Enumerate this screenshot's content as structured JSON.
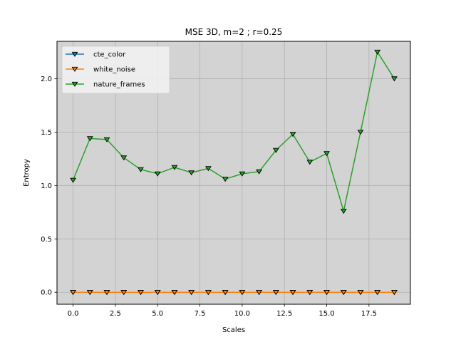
{
  "chart_data": {
    "type": "line",
    "title": "MSE 3D, m=2 ; r=0.25",
    "xlabel": "Scales",
    "ylabel": "Entropy",
    "xlim": [
      -0.95,
      19.95
    ],
    "ylim": [
      -0.112,
      2.35
    ],
    "x_ticks": [
      0,
      2.5,
      5,
      7.5,
      10,
      12.5,
      15,
      17.5
    ],
    "x_tick_labels": [
      "0.0",
      "2.5",
      "5.0",
      "7.5",
      "10.0",
      "12.5",
      "15.0",
      "17.5"
    ],
    "y_ticks": [
      0,
      0.5,
      1.0,
      1.5,
      2.0
    ],
    "y_tick_labels": [
      "0.0",
      "0.5",
      "1.0",
      "1.5",
      "2.0"
    ],
    "grid": true,
    "background": "#d3d3d3",
    "legend_position": "upper-left",
    "marker": "triangle-down",
    "x": [
      0,
      1,
      2,
      3,
      4,
      5,
      6,
      7,
      8,
      9,
      10,
      11,
      12,
      13,
      14,
      15,
      16,
      17,
      18,
      19
    ],
    "series": [
      {
        "name": "cte_color",
        "color": "#1f77b4",
        "values": [
          0,
          0,
          0,
          0,
          0,
          0,
          0,
          0,
          0,
          0,
          0,
          0,
          0,
          0,
          0,
          0,
          0,
          0,
          0,
          0
        ]
      },
      {
        "name": "white_noise",
        "color": "#ff7f0e",
        "values": [
          0,
          0,
          0,
          0,
          0,
          0,
          0,
          0,
          0,
          0,
          0,
          0,
          0,
          0,
          0,
          0,
          0,
          0,
          0,
          0
        ]
      },
      {
        "name": "nature_frames",
        "color": "#2ca02c",
        "values": [
          1.05,
          1.44,
          1.43,
          1.26,
          1.15,
          1.11,
          1.17,
          1.12,
          1.16,
          1.06,
          1.11,
          1.13,
          1.33,
          1.48,
          1.22,
          1.3,
          0.76,
          1.5,
          2.25,
          2.0
        ]
      }
    ]
  }
}
